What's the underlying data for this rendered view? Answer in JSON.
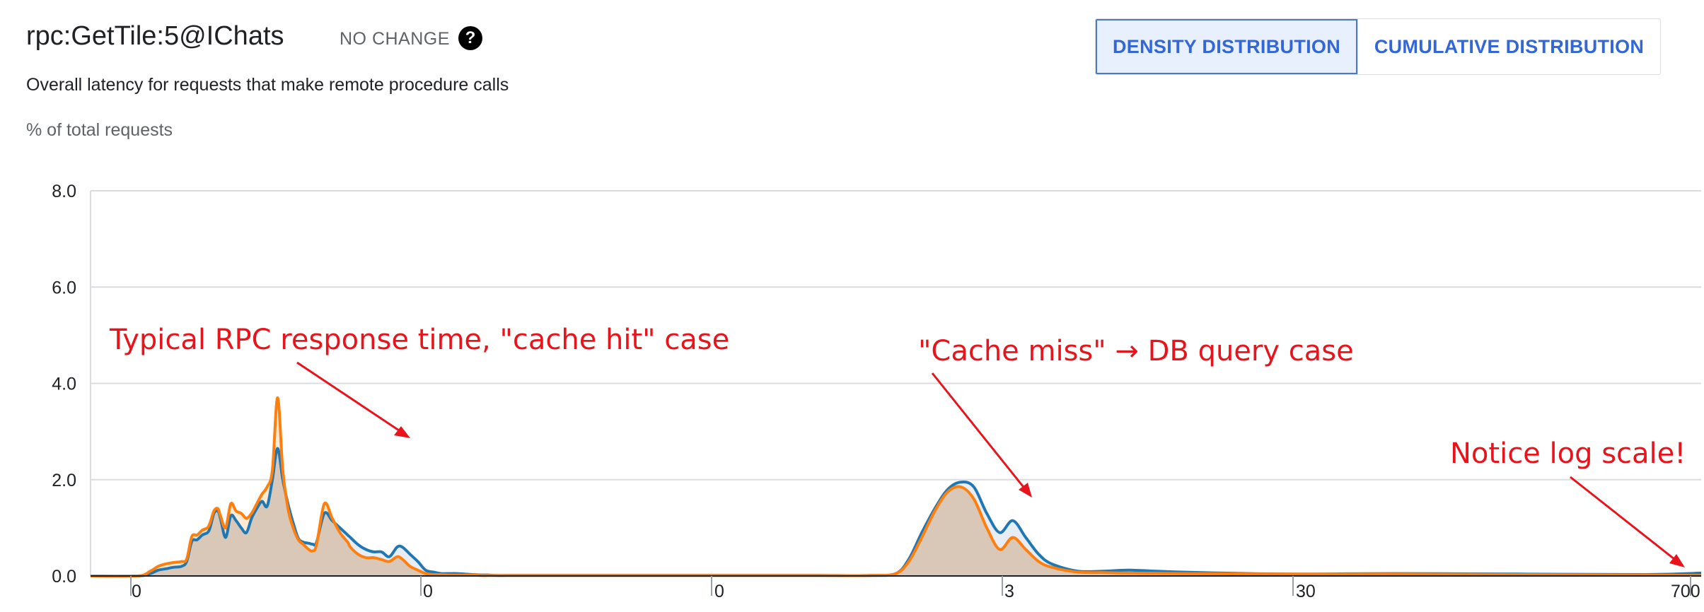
{
  "header": {
    "title": "rpc:GetTile:5@IChats",
    "badge": "NO CHANGE",
    "help_glyph": "?",
    "subtitle": "Overall latency for requests that make remote procedure calls",
    "y_axis_label": "% of total requests"
  },
  "toggle": {
    "density_label": "DENSITY DISTRIBUTION",
    "cumulative_label": "CUMULATIVE DISTRIBUTION",
    "selected": "density"
  },
  "chart_data": {
    "type": "area",
    "title": "rpc:GetTile:5@IChats",
    "ylabel": "% of total requests",
    "xscale": "log",
    "ylim": [
      0,
      8
    ],
    "yticks": [
      0,
      2,
      4,
      6,
      8
    ],
    "ytick_labels": [
      "0.0",
      "2.0",
      "4.0",
      "6.0",
      "8.0"
    ],
    "xtick_labels": [
      "0",
      "0",
      "0",
      "3",
      "30",
      "700"
    ],
    "grid": true,
    "colors": {
      "series_a": "#1f77b4",
      "series_b": "#ff7f0e",
      "fill": "#d9c8b8"
    },
    "x": [
      0,
      0.18,
      0.23,
      0.26,
      0.29,
      0.32,
      0.35,
      0.37,
      0.39,
      0.41,
      0.43,
      0.45,
      0.46,
      0.475,
      0.49,
      0.5,
      0.52,
      0.54,
      0.56,
      0.58,
      0.6,
      0.62,
      0.64,
      0.66,
      0.68,
      0.7,
      0.72,
      0.74,
      0.76,
      0.78,
      0.8,
      0.82,
      0.84,
      0.855,
      0.87,
      0.9,
      0.93,
      0.96,
      0.99,
      1.0,
      1.03,
      1.06,
      1.09,
      1.12,
      1.15,
      1.18,
      1.2,
      1.23,
      1.26,
      1.29,
      1.32,
      1.35,
      1.38,
      1.41,
      1.44,
      1.47,
      1.5,
      1.53,
      1.56,
      1.6,
      1.65,
      1.7,
      1.8,
      2.0,
      2.2,
      2.4,
      2.6,
      2.8,
      3.0,
      3.1,
      3.15,
      3.2,
      3.25,
      3.3,
      3.35,
      3.4,
      3.45,
      3.5,
      3.55,
      3.6,
      3.65,
      3.7,
      3.8,
      3.9,
      4.0,
      4.2,
      4.6,
      5.0,
      5.5,
      5.99,
      6.2
    ],
    "series": [
      {
        "name": "",
        "values": [
          0,
          0,
          0.05,
          0.12,
          0.15,
          0.18,
          0.2,
          0.3,
          0.72,
          0.75,
          0.85,
          0.9,
          1.0,
          1.3,
          1.35,
          1.2,
          0.8,
          1.25,
          1.15,
          1.0,
          0.9,
          1.2,
          1.4,
          1.55,
          1.45,
          2.0,
          2.65,
          2.0,
          1.5,
          1.1,
          0.78,
          0.7,
          0.68,
          0.66,
          0.7,
          1.3,
          1.15,
          1.0,
          0.85,
          0.8,
          0.65,
          0.55,
          0.5,
          0.5,
          0.4,
          0.6,
          0.6,
          0.45,
          0.3,
          0.12,
          0.08,
          0.05,
          0.05,
          0.05,
          0.04,
          0.03,
          0.02,
          0.02,
          0.01,
          0.01,
          0.01,
          0.01,
          0.01,
          0.01,
          0.01,
          0.01,
          0.01,
          0.01,
          0.01,
          0.05,
          0.35,
          0.9,
          1.4,
          1.8,
          1.95,
          1.85,
          1.3,
          0.9,
          1.15,
          0.8,
          0.45,
          0.25,
          0.1,
          0.1,
          0.12,
          0.08,
          0.04,
          0.05,
          0.04,
          0.03,
          0.06
        ]
      },
      {
        "name": "",
        "values": [
          0,
          0,
          0.1,
          0.2,
          0.25,
          0.28,
          0.3,
          0.35,
          0.82,
          0.85,
          0.95,
          1.0,
          1.1,
          1.35,
          1.4,
          1.25,
          1.0,
          1.5,
          1.35,
          1.3,
          1.2,
          1.3,
          1.5,
          1.7,
          1.85,
          2.2,
          3.7,
          2.2,
          1.4,
          1.0,
          0.75,
          0.65,
          0.55,
          0.52,
          0.65,
          1.5,
          1.2,
          0.9,
          0.7,
          0.6,
          0.45,
          0.38,
          0.38,
          0.34,
          0.3,
          0.4,
          0.35,
          0.2,
          0.12,
          0.05,
          0.03,
          0.03,
          0.02,
          0.02,
          0.02,
          0.02,
          0.01,
          0.01,
          0.01,
          0.01,
          0.01,
          0.01,
          0.01,
          0.01,
          0.01,
          0.01,
          0.01,
          0.01,
          0.01,
          0.05,
          0.3,
          0.8,
          1.35,
          1.75,
          1.85,
          1.6,
          1.0,
          0.55,
          0.8,
          0.55,
          0.3,
          0.18,
          0.08,
          0.07,
          0.06,
          0.05,
          0.04,
          0.04,
          0.03,
          0.02,
          0.01
        ]
      }
    ],
    "annotations": [
      "Typical RPC response time, \"cache hit\" case",
      "\"Cache miss\" → DB query case",
      "Notice log scale!"
    ]
  }
}
